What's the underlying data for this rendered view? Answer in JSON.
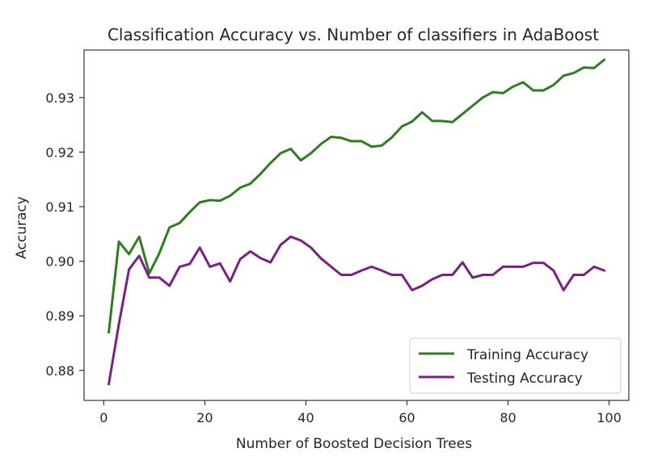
{
  "chart_data": {
    "type": "line",
    "title": "Classification Accuracy vs. Number of classifiers in AdaBoost",
    "xlabel": "Number of Boosted Decision Trees",
    "ylabel": "Accuracy",
    "xlim": [
      -3.9,
      103.9
    ],
    "ylim": [
      0.8745,
      0.9387
    ],
    "xticks": [
      0,
      20,
      40,
      60,
      80,
      100
    ],
    "yticks": [
      0.88,
      0.89,
      0.9,
      0.91,
      0.92,
      0.93
    ],
    "ytick_labels": [
      "0.88",
      "0.89",
      "0.90",
      "0.91",
      "0.92",
      "0.93"
    ],
    "grid": false,
    "legend_position": "lower right",
    "x": [
      1,
      3,
      5,
      7,
      9,
      11,
      13,
      15,
      17,
      19,
      21,
      23,
      25,
      27,
      29,
      31,
      33,
      35,
      37,
      39,
      41,
      43,
      45,
      47,
      49,
      51,
      53,
      55,
      57,
      59,
      61,
      63,
      65,
      67,
      69,
      71,
      73,
      75,
      77,
      79,
      81,
      83,
      85,
      87,
      89,
      91,
      93,
      95,
      97,
      99
    ],
    "series": [
      {
        "name": "Training Accuracy",
        "color": "#2e7d1f",
        "values": [
          0.887,
          0.9036,
          0.9013,
          0.9045,
          0.8978,
          0.9015,
          0.9062,
          0.907,
          0.909,
          0.9108,
          0.9112,
          0.9111,
          0.912,
          0.9135,
          0.9142,
          0.916,
          0.918,
          0.9198,
          0.9206,
          0.9185,
          0.9198,
          0.9215,
          0.9228,
          0.9226,
          0.922,
          0.922,
          0.921,
          0.9212,
          0.9227,
          0.9247,
          0.9256,
          0.9273,
          0.9257,
          0.9257,
          0.9255,
          0.927,
          0.9285,
          0.93,
          0.931,
          0.9308,
          0.932,
          0.9328,
          0.9313,
          0.9313,
          0.9323,
          0.934,
          0.9345,
          0.9355,
          0.9354,
          0.9369
        ]
      },
      {
        "name": "Testing Accuracy",
        "color": "#7b1f86",
        "values": [
          0.8775,
          0.8885,
          0.8985,
          0.901,
          0.897,
          0.897,
          0.8955,
          0.899,
          0.8995,
          0.9025,
          0.899,
          0.8996,
          0.8963,
          0.9004,
          0.9018,
          0.9006,
          0.8998,
          0.903,
          0.9045,
          0.9038,
          0.9025,
          0.9005,
          0.899,
          0.8975,
          0.8975,
          0.8983,
          0.899,
          0.8983,
          0.8975,
          0.8975,
          0.8947,
          0.8955,
          0.8967,
          0.8975,
          0.8975,
          0.8998,
          0.897,
          0.8975,
          0.8975,
          0.899,
          0.899,
          0.899,
          0.8997,
          0.8997,
          0.8983,
          0.8947,
          0.8975,
          0.8975,
          0.899,
          0.8983
        ]
      }
    ]
  }
}
